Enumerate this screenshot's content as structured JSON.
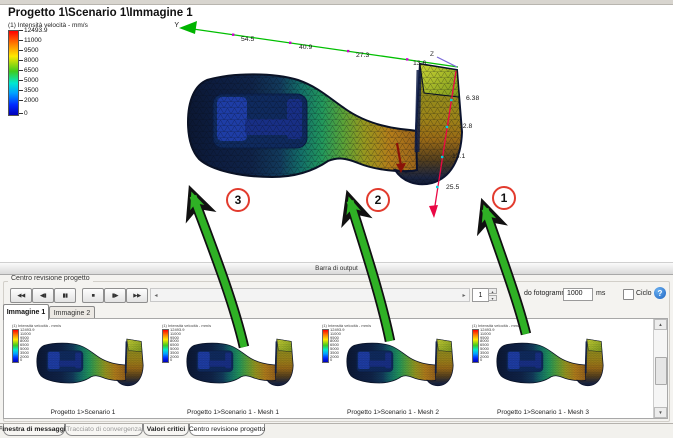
{
  "scene": {
    "title": "Progetto 1\\Scenario 1\\Immagine 1",
    "legend": {
      "label": "(1) Intensità velocità - mm/s",
      "values": [
        "12493.9",
        "11000",
        "9500",
        "8000",
        "6500",
        "5000",
        "3500",
        "2000",
        "0"
      ]
    },
    "axes": {
      "y_label": "Y",
      "z_label": "Z",
      "y_dims": [
        "54.5",
        "40.9",
        "27.3",
        "13.6"
      ],
      "x_dims": [
        "6.38",
        "12.8",
        "13.1",
        "25.5"
      ]
    },
    "callouts": [
      "3",
      "2",
      "1"
    ]
  },
  "output_bar": {
    "label": "Barra di output"
  },
  "review": {
    "group_label": "Centro revisione progetto",
    "playback": {
      "buttons": [
        {
          "name": "go-start",
          "glyph": "◀◀"
        },
        {
          "name": "step-back",
          "glyph": "◀▮"
        },
        {
          "name": "pause",
          "glyph": "▮▮"
        },
        {
          "name": "stop",
          "glyph": "■"
        },
        {
          "name": "step-forward",
          "glyph": "▮▶"
        },
        {
          "name": "go-end",
          "glyph": "▶▶"
        }
      ],
      "scroll_left": "◂",
      "scroll_right": "▸",
      "frame_value": "1",
      "spin_up": "▴",
      "spin_down": "▾",
      "delay_label": "do fotogrammi:",
      "delay_value": "1000",
      "delay_unit": "ms",
      "loop_label": "Ciclo",
      "help_glyph": "?"
    },
    "image_tabs": [
      {
        "label": "Immagine 1"
      },
      {
        "label": "Immagine 2"
      }
    ],
    "thumbnails": [
      {
        "caption": "Progetto 1>Scenario 1"
      },
      {
        "caption": "Progetto 1>Scenario 1 - Mesh 1"
      },
      {
        "caption": "Progetto 1>Scenario 1 - Mesh 2"
      },
      {
        "caption": "Progetto 1>Scenario 1 - Mesh 3"
      }
    ],
    "v_scroll": {
      "up": "▲",
      "down": "▼"
    }
  },
  "bottom_tabs": [
    {
      "label": "Finestra di messaggio"
    },
    {
      "label": "Tracciato di convergenza"
    },
    {
      "label": "Valori critici"
    },
    {
      "label": "Centro revisione progetto"
    }
  ],
  "colors": {
    "arrow_green": "#2fb125",
    "callout_ring": "#e23b2e",
    "axis_y": "#00bf00",
    "axis_x": "#ea0845",
    "axis_z": "#7a68d8",
    "legend_top": "#ff0000",
    "legend_bottom": "#0000b8"
  }
}
